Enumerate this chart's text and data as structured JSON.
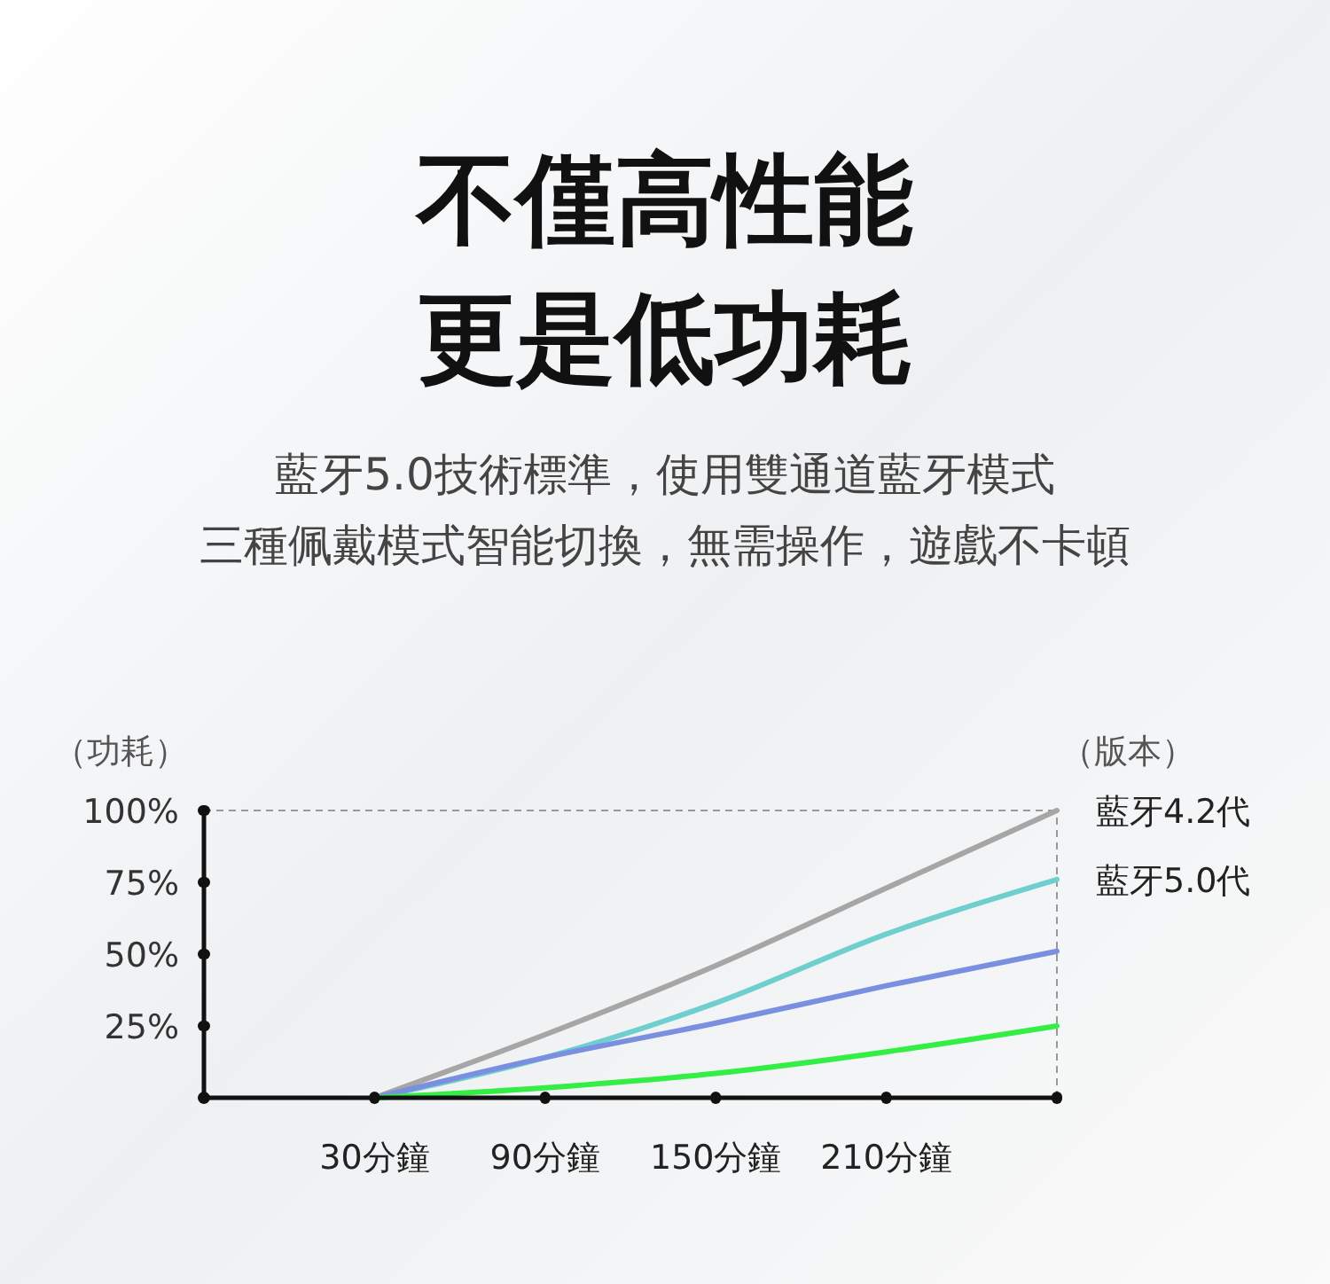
{
  "chart_data": {
    "type": "line",
    "title": "不僅高性能更是低功耗",
    "subtitle": "藍牙5.0技術標準，使用雙通道藍牙模式",
    "annotations": [
      "三種佩戴模式智能切換，無需操作，遊戲不卡頓"
    ],
    "ylabel": "（功耗）",
    "legend_title": "（版本）",
    "x": [
      30,
      90,
      150,
      210,
      270
    ],
    "xlim": [
      -30,
      270
    ],
    "xticks": [
      {
        "value": -30,
        "label": null
      },
      {
        "value": 30,
        "label": "30分鐘"
      },
      {
        "value": 90,
        "label": "90分鐘"
      },
      {
        "value": 150,
        "label": "150分鐘"
      },
      {
        "value": 210,
        "label": "210分鐘"
      },
      {
        "value": 270,
        "label": null
      }
    ],
    "ylim": [
      0,
      100
    ],
    "yticks": [
      {
        "value": 0,
        "label": null
      },
      {
        "value": 25,
        "label": "25%"
      },
      {
        "value": 50,
        "label": "50%"
      },
      {
        "value": 75,
        "label": "75%"
      },
      {
        "value": 100,
        "label": "100%"
      }
    ],
    "series": [
      {
        "name": "藍牙4.2代",
        "color": "#a6a6a6",
        "values": [
          0,
          22,
          46,
          73,
          100
        ]
      },
      {
        "name": "藍牙5.0代",
        "color": "#6fcfcf",
        "values": [
          0,
          14,
          33,
          57,
          76
        ]
      },
      {
        "color": "#7b8fe0",
        "values": [
          0,
          14,
          26,
          39,
          51
        ]
      },
      {
        "color": "#33ee44",
        "values": [
          0,
          3.5,
          8.5,
          16,
          25
        ]
      }
    ],
    "ref_lines": [
      {
        "axis": "y",
        "value": 100,
        "color": "#999999",
        "line_style": "dashed"
      },
      {
        "axis": "x",
        "value": 270,
        "color": "#999999",
        "line_style": "dashed"
      }
    ],
    "marker": "none",
    "line_style": "solid",
    "grid": false,
    "legend": false
  }
}
